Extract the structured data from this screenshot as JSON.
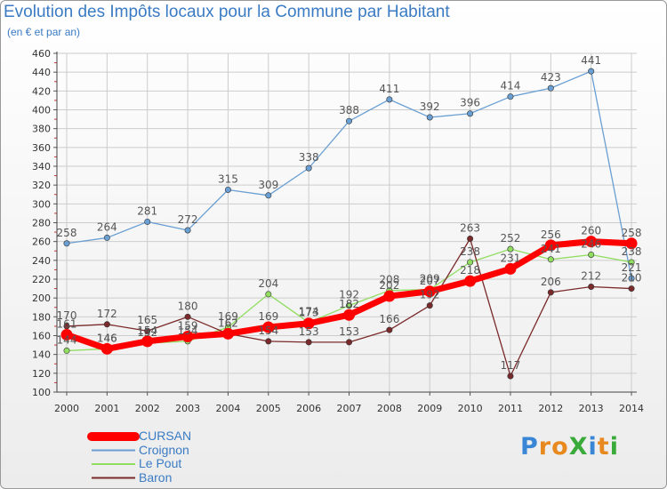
{
  "title": "Evolution des Impôts locaux pour la Commune par Habitant",
  "subtitle": "(en € et par an)",
  "logo": "ProXiti",
  "logo_colors": [
    "#3a86d6",
    "#e8891f",
    "#e8891f",
    "#3aaa3a",
    "#3a86d6",
    "#e8891f",
    "#3aaa3a"
  ],
  "chart_data": {
    "type": "line",
    "x": [
      "2000",
      "2001",
      "2002",
      "2003",
      "2004",
      "2005",
      "2006",
      "2007",
      "2008",
      "2009",
      "2010",
      "2011",
      "2012",
      "2013",
      "2014"
    ],
    "ylim": [
      100,
      460
    ],
    "yticks": [
      100,
      120,
      140,
      160,
      180,
      200,
      220,
      240,
      260,
      280,
      300,
      320,
      340,
      360,
      380,
      400,
      420,
      440,
      460
    ],
    "grid": true,
    "legend_position": "bottom-left",
    "series": [
      {
        "name": "CURSAN",
        "color": "#ff0000",
        "values": [
          161,
          146,
          154,
          159,
          162,
          169,
          173,
          182,
          202,
          207,
          218,
          231,
          256,
          260,
          258
        ]
      },
      {
        "name": "Croignon",
        "color": "#6a9fd3",
        "values": [
          258,
          264,
          281,
          272,
          315,
          309,
          338,
          388,
          411,
          392,
          396,
          414,
          423,
          441,
          221
        ]
      },
      {
        "name": "Le Pout",
        "color": "#90dd60",
        "values": [
          144,
          146,
          152,
          154,
          169,
          204,
          174,
          192,
          208,
          209,
          238,
          252,
          241,
          246,
          238
        ]
      },
      {
        "name": "Baron",
        "color": "#7a2a2a",
        "values": [
          170,
          172,
          165,
          180,
          162,
          154,
          153,
          153,
          166,
          192,
          263,
          117,
          206,
          212,
          210
        ]
      }
    ]
  }
}
